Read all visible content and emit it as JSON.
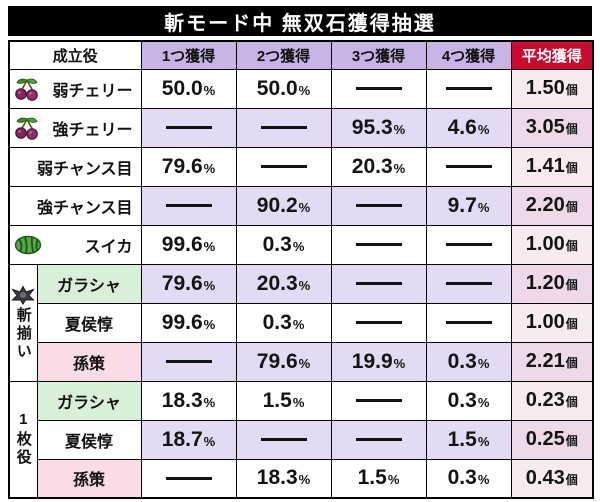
{
  "title": "斬モード中 無双石獲得抽選",
  "columns": {
    "role": "成立役",
    "gains": [
      "1つ獲得",
      "2つ獲得",
      "3つ獲得",
      "4つ獲得"
    ],
    "average": "平均獲得"
  },
  "units": {
    "percent": "%",
    "count": "個"
  },
  "dash": "—",
  "colors": {
    "title_bg": "#000000",
    "header_purple": "#c8b4e4",
    "header_red": "#cc0a2e",
    "row_lavender": "#e5daf3",
    "avg_pink_light": "#f7eaf1",
    "avg_pink_dark": "#edd9e7",
    "label_green": "#d8efd8",
    "label_pink": "#fadbe7",
    "label_white": "#ffffff"
  },
  "groups": [
    {
      "label": "斬揃い",
      "icon": "emblem-icon",
      "start": 5,
      "span": 3
    },
    {
      "label": "1枚役",
      "icon": "",
      "start": 8,
      "span": 3
    }
  ],
  "rows": [
    {
      "label": "弱チェリー",
      "icon": "cherry-icon",
      "label_bg": "#ffffff",
      "values": [
        "50.0",
        "50.0",
        "",
        ""
      ],
      "avg": "1.50"
    },
    {
      "label": "強チェリー",
      "icon": "cherry-icon",
      "label_bg": "#ffffff",
      "values": [
        "",
        "",
        "95.3",
        "4.6"
      ],
      "avg": "3.05"
    },
    {
      "label": "弱チャンス目",
      "icon": "",
      "label_bg": "#ffffff",
      "values": [
        "79.6",
        "",
        "20.3",
        ""
      ],
      "avg": "1.41"
    },
    {
      "label": "強チャンス目",
      "icon": "",
      "label_bg": "#ffffff",
      "values": [
        "",
        "90.2",
        "",
        "9.7"
      ],
      "avg": "2.20"
    },
    {
      "label": "スイカ",
      "icon": "watermelon-icon",
      "label_bg": "#ffffff",
      "values": [
        "99.6",
        "0.3",
        "",
        ""
      ],
      "avg": "1.00"
    },
    {
      "label": "ガラシャ",
      "icon": "",
      "label_bg": "#d8efd8",
      "values": [
        "79.6",
        "20.3",
        "",
        ""
      ],
      "avg": "1.20"
    },
    {
      "label": "夏侯惇",
      "icon": "",
      "label_bg": "#ffffff",
      "values": [
        "99.6",
        "0.3",
        "",
        ""
      ],
      "avg": "1.00"
    },
    {
      "label": "孫策",
      "icon": "",
      "label_bg": "#fadbe7",
      "values": [
        "",
        "79.6",
        "19.9",
        "0.3"
      ],
      "avg": "2.21"
    },
    {
      "label": "ガラシャ",
      "icon": "",
      "label_bg": "#d8efd8",
      "values": [
        "18.3",
        "1.5",
        "",
        "0.3"
      ],
      "avg": "0.23"
    },
    {
      "label": "夏侯惇",
      "icon": "",
      "label_bg": "#ffffff",
      "values": [
        "18.7",
        "",
        "",
        "1.5"
      ],
      "avg": "0.25"
    },
    {
      "label": "孫策",
      "icon": "",
      "label_bg": "#fadbe7",
      "values": [
        "",
        "18.3",
        "1.5",
        "0.3"
      ],
      "avg": "0.43"
    }
  ],
  "chart_data": {
    "type": "table",
    "title": "斬モード中 無双石獲得抽選",
    "columns": [
      "成立役",
      "1つ獲得",
      "2つ獲得",
      "3つ獲得",
      "4つ獲得",
      "平均獲得"
    ],
    "rows": [
      [
        "弱チェリー",
        "50.0%",
        "50.0%",
        "—",
        "—",
        "1.50個"
      ],
      [
        "強チェリー",
        "—",
        "—",
        "95.3%",
        "4.6%",
        "3.05個"
      ],
      [
        "弱チャンス目",
        "79.6%",
        "—",
        "20.3%",
        "—",
        "1.41個"
      ],
      [
        "強チャンス目",
        "—",
        "90.2%",
        "—",
        "9.7%",
        "2.20個"
      ],
      [
        "スイカ",
        "99.6%",
        "0.3%",
        "—",
        "—",
        "1.00個"
      ],
      [
        "斬揃い ガラシャ",
        "79.6%",
        "20.3%",
        "—",
        "—",
        "1.20個"
      ],
      [
        "斬揃い 夏侯惇",
        "99.6%",
        "0.3%",
        "—",
        "—",
        "1.00個"
      ],
      [
        "斬揃い 孫策",
        "—",
        "79.6%",
        "19.9%",
        "0.3%",
        "2.21個"
      ],
      [
        "1枚役 ガラシャ",
        "18.3%",
        "1.5%",
        "—",
        "0.3%",
        "0.23個"
      ],
      [
        "1枚役 夏侯惇",
        "18.7%",
        "—",
        "—",
        "1.5%",
        "0.25個"
      ],
      [
        "1枚役 孫策",
        "—",
        "18.3%",
        "1.5%",
        "0.3%",
        "0.43個"
      ]
    ]
  }
}
